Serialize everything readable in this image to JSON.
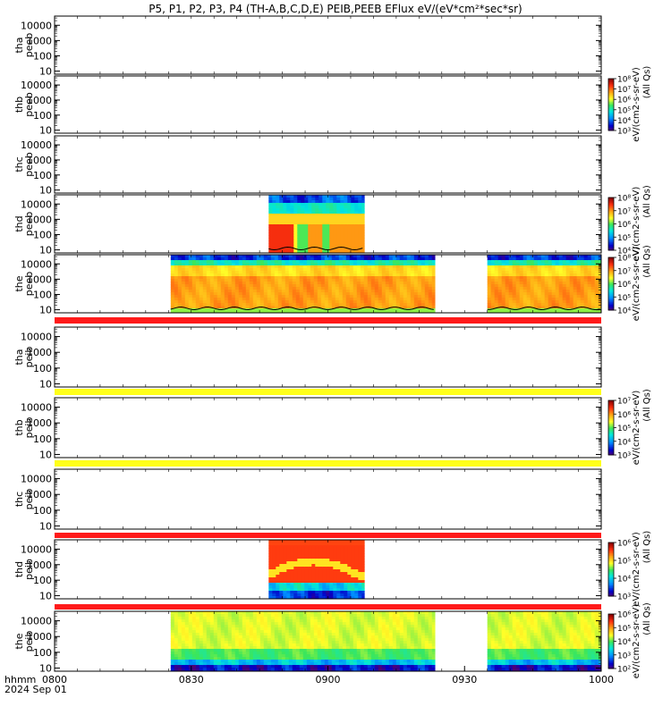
{
  "title": "P5, P1, P2, P3, P4 (TH-A,B,C,D,E) PEIB,PEEB EFlux eV/(eV*cm²*sec*sr)",
  "colors": {
    "red_band": "#ff1a1a",
    "yellow_band": "#ffff1a",
    "trace": "#000000"
  },
  "chart_data": {
    "type": "heatmap",
    "x_axis": {
      "start_label": "hhmm",
      "date_label": "2024 Sep 01",
      "ticks": [
        "0800",
        "0830",
        "0900",
        "0930",
        "1000"
      ],
      "tick_values_min": [
        0,
        30,
        60,
        90,
        120
      ],
      "range_min": [
        0,
        120
      ]
    },
    "panels": [
      {
        "name1": "tha",
        "name2": "peeb",
        "yticks": [
          "10",
          "100",
          "1000",
          "10000"
        ],
        "colorbar": null,
        "segments": [],
        "band": null
      },
      {
        "name1": "thb",
        "name2": "peeb",
        "yticks": [
          "10",
          "100",
          "1000",
          "10000"
        ],
        "colorbar": {
          "label": "eV/(cm2-s-sr-eV)",
          "sublabel": "(All Qs)",
          "ticks": [
            "10³",
            "10⁴",
            "10⁵",
            "10⁶",
            "10⁷",
            "10⁸"
          ]
        },
        "segments": [],
        "band": null
      },
      {
        "name1": "thc",
        "name2": "peeb",
        "yticks": [
          "10",
          "100",
          "1000",
          "10000"
        ],
        "colorbar": null,
        "segments": [],
        "band": null
      },
      {
        "name1": "thd",
        "name2": "peeb",
        "yticks": [
          "10",
          "100",
          "1000",
          "10000"
        ],
        "colorbar": {
          "label": "eV/(cm2-s-sr-eV)",
          "sublabel": "(All Qs)",
          "ticks": [
            "10⁴",
            "10⁵",
            "10⁶",
            "10⁷",
            "10⁸"
          ]
        },
        "segments": [
          {
            "from": 47,
            "to": 68,
            "profile": "hot"
          }
        ],
        "band": null
      },
      {
        "name1": "the",
        "name2": "peeb",
        "yticks": [
          "10",
          "100",
          "1000",
          "10000"
        ],
        "colorbar": {
          "label": "eV/(cm2-s-sr-eV)",
          "sublabel": "(All Qs)",
          "ticks": [
            "10⁴",
            "10⁵",
            "10⁶",
            "10⁷",
            "10⁸"
          ]
        },
        "segments": [
          {
            "from": 25.5,
            "to": 83.5,
            "profile": "warm"
          },
          {
            "from": 95,
            "to": 120,
            "profile": "warm"
          }
        ],
        "band": "red"
      },
      {
        "name1": "tha",
        "name2": "peib",
        "yticks": [
          "10",
          "100",
          "1000",
          "10000"
        ],
        "colorbar": null,
        "segments": [],
        "band": "yellow"
      },
      {
        "name1": "thb",
        "name2": "peib",
        "yticks": [
          "10",
          "100",
          "1000",
          "10000"
        ],
        "colorbar": {
          "label": "eV/(cm2-s-sr-eV)",
          "sublabel": "(All Qs)",
          "ticks": [
            "10³",
            "10⁴",
            "10⁵",
            "10⁶",
            "10⁷"
          ]
        },
        "segments": [],
        "band": "yellow"
      },
      {
        "name1": "thc",
        "name2": "peib",
        "yticks": [
          "10",
          "100",
          "1000",
          "10000"
        ],
        "colorbar": null,
        "segments": [],
        "band": "red"
      },
      {
        "name1": "thd",
        "name2": "peib",
        "yticks": [
          "10",
          "100",
          "1000",
          "10000"
        ],
        "colorbar": {
          "label": "eV/(cm2-s-sr-eV)",
          "sublabel": "(All Qs)",
          "ticks": [
            "10³",
            "10⁴",
            "10⁵",
            "10⁶"
          ]
        },
        "segments": [
          {
            "from": 47,
            "to": 68,
            "profile": "ionhot"
          }
        ],
        "band": "red"
      },
      {
        "name1": "the",
        "name2": "peib",
        "yticks": [
          "10",
          "100",
          "1000",
          "10000"
        ],
        "colorbar": {
          "label": "eV/(cm2-s-sr-eV)",
          "sublabel": "(All Qs)",
          "ticks": [
            "10²",
            "10³",
            "10⁴",
            "10⁵",
            "10⁶"
          ]
        },
        "segments": [
          {
            "from": 25.5,
            "to": 83.5,
            "profile": "ion"
          },
          {
            "from": 95,
            "to": 120,
            "profile": "ion"
          }
        ],
        "band": null
      }
    ]
  }
}
